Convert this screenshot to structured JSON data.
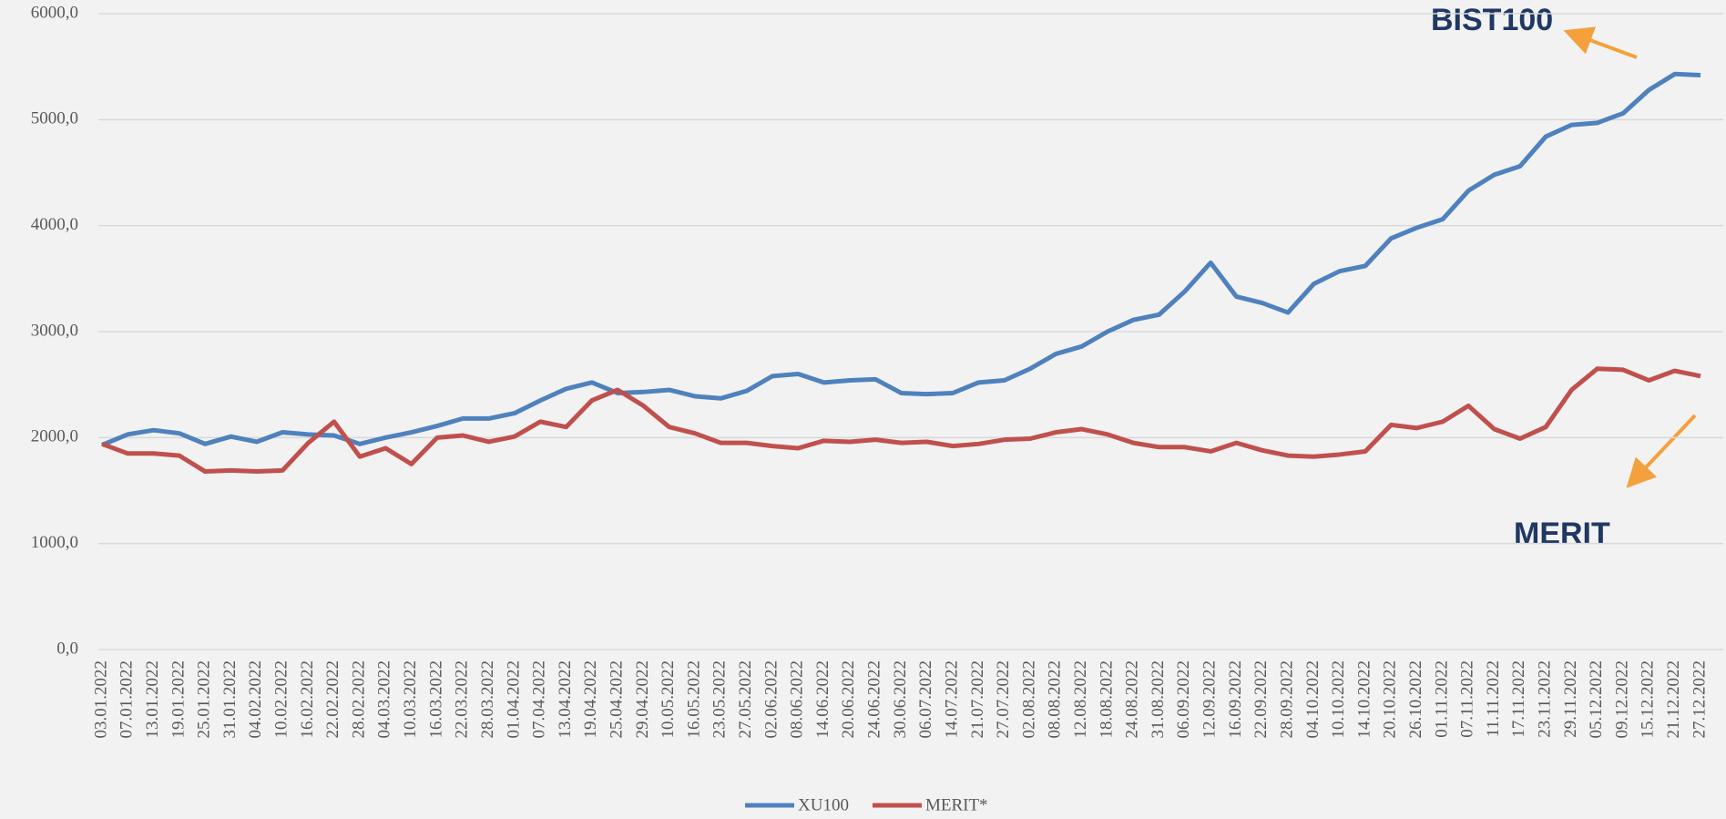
{
  "chart_data": {
    "type": "line",
    "categories": [
      "03.01.2022",
      "07.01.2022",
      "13.01.2022",
      "19.01.2022",
      "25.01.2022",
      "31.01.2022",
      "04.02.2022",
      "10.02.2022",
      "16.02.2022",
      "22.02.2022",
      "28.02.2022",
      "04.03.2022",
      "10.03.2022",
      "16.03.2022",
      "22.03.2022",
      "28.03.2022",
      "01.04.2022",
      "07.04.2022",
      "13.04.2022",
      "19.04.2022",
      "25.04.2022",
      "29.04.2022",
      "10.05.2022",
      "16.05.2022",
      "23.05.2022",
      "27.05.2022",
      "02.06.2022",
      "08.06.2022",
      "14.06.2022",
      "20.06.2022",
      "24.06.2022",
      "30.06.2022",
      "06.07.2022",
      "14.07.2022",
      "21.07.2022",
      "27.07.2022",
      "02.08.2022",
      "08.08.2022",
      "12.08.2022",
      "18.08.2022",
      "24.08.2022",
      "31.08.2022",
      "06.09.2022",
      "12.09.2022",
      "16.09.2022",
      "22.09.2022",
      "28.09.2022",
      "04.10.2022",
      "10.10.2022",
      "14.10.2022",
      "20.10.2022",
      "26.10.2022",
      "01.11.2022",
      "07.11.2022",
      "11.11.2022",
      "17.11.2022",
      "23.11.2022",
      "29.11.2022",
      "05.12.2022",
      "09.12.2022",
      "15.12.2022",
      "21.12.2022",
      "27.12.2022"
    ],
    "series": [
      {
        "name": "XU100",
        "color": "#4f81bd",
        "values": [
          1930,
          2030,
          2070,
          2040,
          1940,
          2010,
          1960,
          2050,
          2030,
          2020,
          1940,
          2000,
          2050,
          2110,
          2180,
          2180,
          2230,
          2350,
          2460,
          2520,
          2420,
          2430,
          2450,
          2390,
          2370,
          2440,
          2580,
          2600,
          2520,
          2540,
          2550,
          2420,
          2410,
          2420,
          2520,
          2540,
          2650,
          2790,
          2860,
          3000,
          3110,
          3160,
          3380,
          3650,
          3330,
          3270,
          3180,
          3450,
          3570,
          3620,
          3880,
          3980,
          4060,
          4330,
          4480,
          4560,
          4840,
          4950,
          4970,
          5060,
          5280,
          5430,
          5420
        ]
      },
      {
        "name": "MERIT*",
        "color": "#c0504d",
        "values": [
          1940,
          1850,
          1850,
          1830,
          1680,
          1690,
          1680,
          1690,
          1950,
          2150,
          1820,
          1900,
          1750,
          2000,
          2020,
          1960,
          2010,
          2150,
          2100,
          2350,
          2450,
          2300,
          2100,
          2040,
          1950,
          1950,
          1920,
          1900,
          1970,
          1960,
          1980,
          1950,
          1960,
          1920,
          1940,
          1980,
          1990,
          2050,
          2080,
          2030,
          1950,
          1910,
          1910,
          1870,
          1950,
          1880,
          1830,
          1820,
          1840,
          1870,
          2120,
          2090,
          2150,
          2300,
          2080,
          1990,
          2100,
          2450,
          2650,
          2640,
          2540,
          2630,
          2580
        ]
      }
    ],
    "ylim": [
      0,
      6000
    ],
    "yticks": [
      {
        "value": 0,
        "label": "0,0"
      },
      {
        "value": 1000,
        "label": "1000,0"
      },
      {
        "value": 2000,
        "label": "2000,0"
      },
      {
        "value": 3000,
        "label": "3000,0"
      },
      {
        "value": 4000,
        "label": "4000,0"
      },
      {
        "value": 5000,
        "label": "5000,0"
      },
      {
        "value": 6000,
        "label": "6000,0"
      }
    ],
    "grid": true,
    "legend": "bottom",
    "annotations": [
      "BIST100",
      "MERIT"
    ]
  }
}
